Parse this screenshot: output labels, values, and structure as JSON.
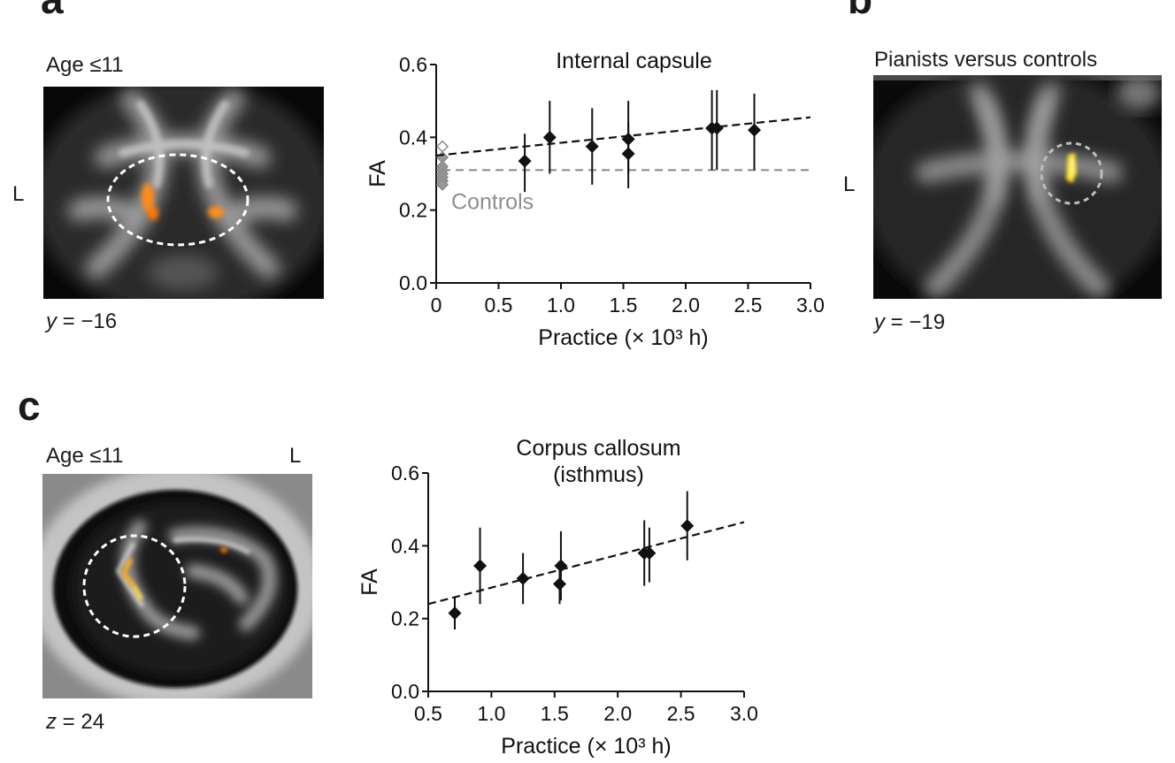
{
  "panels": {
    "a": {
      "letter": "a",
      "image_label": "Age ≤11",
      "side_label": "L",
      "coord_prefix": "y",
      "coord_value": " = −16"
    },
    "b": {
      "letter": "b",
      "image_label": "Pianists versus controls",
      "side_label": "L",
      "coord_prefix": "y",
      "coord_value": " = −19"
    },
    "c": {
      "letter": "c",
      "image_label": "Age ≤11",
      "side_label": "L",
      "coord_prefix": "z",
      "coord_value": " = 24"
    }
  },
  "chart_data": [
    {
      "id": "a",
      "type": "scatter",
      "title": "Internal capsule",
      "xlabel": "Practice (× 10³ h)",
      "ylabel": "FA",
      "xlim": [
        0,
        3.0
      ],
      "ylim": [
        0,
        0.6
      ],
      "xticks": [
        "0",
        "0.5",
        "1.0",
        "1.5",
        "2.0",
        "2.5",
        "3.0"
      ],
      "yticks": [
        "0.0",
        "0.2",
        "0.4",
        "0.6"
      ],
      "points": [
        {
          "x": 0.71,
          "y": 0.335,
          "lo": 0.25,
          "hi": 0.41
        },
        {
          "x": 0.91,
          "y": 0.4,
          "lo": 0.3,
          "hi": 0.5
        },
        {
          "x": 1.25,
          "y": 0.375,
          "lo": 0.27,
          "hi": 0.48
        },
        {
          "x": 1.54,
          "y": 0.395,
          "lo": 0.3,
          "hi": 0.5
        },
        {
          "x": 1.54,
          "y": 0.355,
          "lo": 0.26,
          "hi": 0.44
        },
        {
          "x": 2.21,
          "y": 0.425,
          "lo": 0.31,
          "hi": 0.53
        },
        {
          "x": 2.25,
          "y": 0.425,
          "lo": 0.31,
          "hi": 0.53
        },
        {
          "x": 2.55,
          "y": 0.42,
          "lo": 0.31,
          "hi": 0.52
        }
      ],
      "fit": {
        "x0": 0,
        "y0": 0.35,
        "x1": 3.0,
        "y1": 0.455
      },
      "controls": {
        "label": "Controls",
        "line_y": 0.31,
        "x": 0.05,
        "points": [
          0.375,
          0.345,
          0.32,
          0.31,
          0.3,
          0.29,
          0.28,
          0.27
        ]
      }
    },
    {
      "id": "c",
      "type": "scatter",
      "title": "Corpus callosum",
      "subtitle": "(isthmus)",
      "xlabel": "Practice (× 10³ h)",
      "ylabel": "FA",
      "xlim": [
        0.5,
        3.0
      ],
      "ylim": [
        0,
        0.6
      ],
      "xticks": [
        "0.5",
        "1.0",
        "1.5",
        "2.0",
        "2.5",
        "3.0"
      ],
      "yticks": [
        "0.0",
        "0.2",
        "0.4",
        "0.6"
      ],
      "points": [
        {
          "x": 0.71,
          "y": 0.215,
          "lo": 0.17,
          "hi": 0.26
        },
        {
          "x": 0.91,
          "y": 0.345,
          "lo": 0.24,
          "hi": 0.45
        },
        {
          "x": 1.25,
          "y": 0.31,
          "lo": 0.24,
          "hi": 0.38
        },
        {
          "x": 1.55,
          "y": 0.345,
          "lo": 0.25,
          "hi": 0.44
        },
        {
          "x": 1.54,
          "y": 0.295,
          "lo": 0.24,
          "hi": 0.35
        },
        {
          "x": 2.21,
          "y": 0.38,
          "lo": 0.29,
          "hi": 0.47
        },
        {
          "x": 2.25,
          "y": 0.38,
          "lo": 0.3,
          "hi": 0.45
        },
        {
          "x": 2.55,
          "y": 0.455,
          "lo": 0.36,
          "hi": 0.55
        }
      ],
      "fit": {
        "x0": 0.5,
        "y0": 0.24,
        "x1": 3.0,
        "y1": 0.465
      }
    }
  ]
}
